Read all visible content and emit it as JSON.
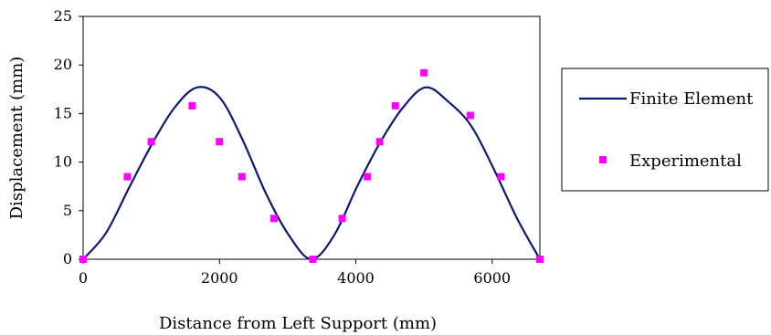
{
  "chart_data": {
    "type": "scatter",
    "xlabel": "Distance from Left Support (mm)",
    "ylabel": "Displacement (mm)",
    "xlim": [
      0,
      6700
    ],
    "ylim": [
      0,
      25
    ],
    "x_ticks": [
      0,
      2000,
      4000,
      6000
    ],
    "y_ticks": [
      0,
      5,
      10,
      15,
      20,
      25
    ],
    "grid": false,
    "legend_position": "right",
    "series": [
      {
        "name": "Finite Element",
        "kind": "line",
        "color": "#0b1a70",
        "x": [
          0,
          335,
          670,
          1005,
          1340,
          1675,
          2010,
          2345,
          2680,
          3015,
          3350,
          3685,
          4020,
          4355,
          4690,
          5025,
          5360,
          5695,
          6030,
          6365,
          6700
        ],
        "y": [
          0,
          2.7,
          7.3,
          11.8,
          15.6,
          17.7,
          16.6,
          12.2,
          6.8,
          2.5,
          0,
          2.5,
          7.5,
          12.0,
          15.6,
          17.7,
          16.2,
          13.7,
          9.2,
          4.2,
          0
        ]
      },
      {
        "name": "Experimental",
        "kind": "scatter",
        "color": "#ff00ff",
        "x": [
          0,
          650,
          1000,
          1600,
          2000,
          2330,
          2800,
          3370,
          3800,
          4170,
          4350,
          4580,
          5000,
          5680,
          6130,
          6700
        ],
        "y": [
          0,
          8.5,
          12.1,
          15.8,
          12.1,
          8.5,
          4.2,
          0,
          4.2,
          8.5,
          12.1,
          15.8,
          19.2,
          14.8,
          8.5,
          0
        ]
      }
    ]
  }
}
